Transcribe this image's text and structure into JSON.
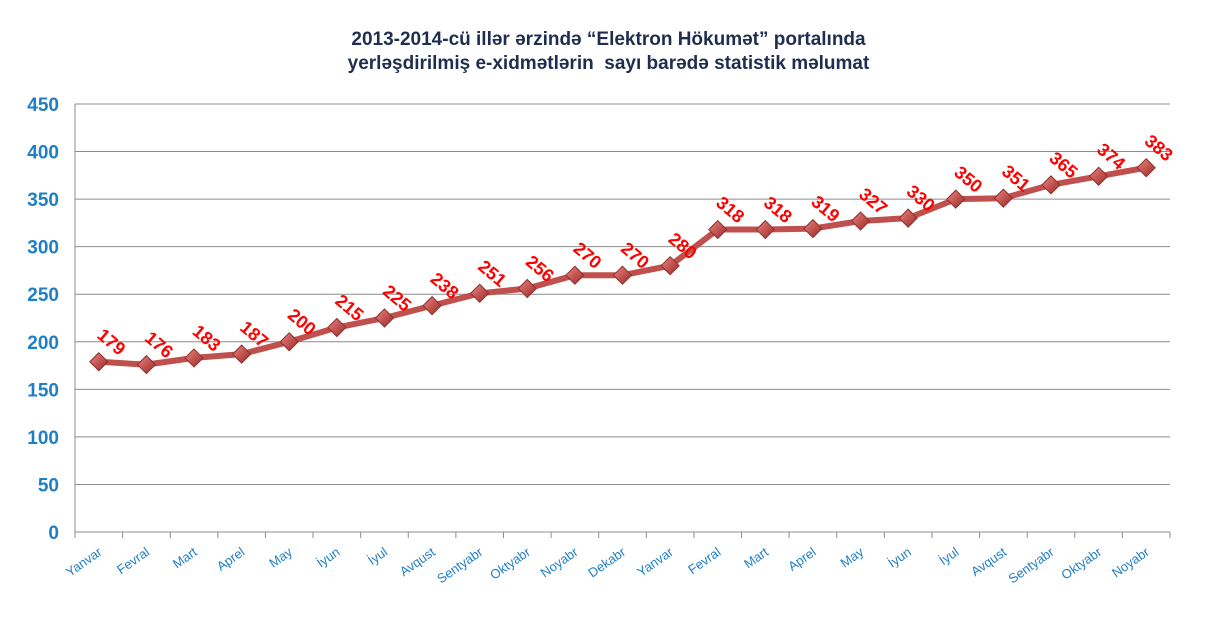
{
  "chart_data": {
    "type": "line",
    "title": {
      "line1": "2013-2014-cü illər ərzində “Elektron Hökumət” portalında",
      "line2": "yerləşdirilmiş e-xidmətlərin  sayı barədə statistik məlumat"
    },
    "categories": [
      "Yanvar",
      "Fevral",
      "Mart",
      "Aprel",
      "May",
      "İyun",
      "İyul",
      "Avqust",
      "Sentyabr",
      "Oktyabr",
      "Noyabr",
      "Dekabr",
      "Yanvar",
      "Fevral",
      "Mart",
      "Aprel",
      "May",
      "İyun",
      "İyul",
      "Avqust",
      "Sentyabr",
      "Oktyabr",
      "Noyabr"
    ],
    "series": [
      {
        "values": [
          179,
          176,
          183,
          187,
          200,
          215,
          225,
          238,
          251,
          256,
          270,
          270,
          280,
          318,
          318,
          319,
          327,
          330,
          350,
          351,
          365,
          374,
          383
        ]
      }
    ],
    "ylim": [
      0,
      450
    ],
    "yticks": [
      0,
      50,
      100,
      150,
      200,
      250,
      300,
      350,
      400,
      450
    ],
    "xlabel": "",
    "ylabel": "",
    "grid": true,
    "legend": "none",
    "colors": {
      "line": "#c0504d",
      "marker": "#c0504d",
      "data_label": "#ff0000",
      "axis_tick_labels": "#1f7fc4",
      "grid": "#8c8c8c",
      "title": "#1f2d4f"
    }
  }
}
